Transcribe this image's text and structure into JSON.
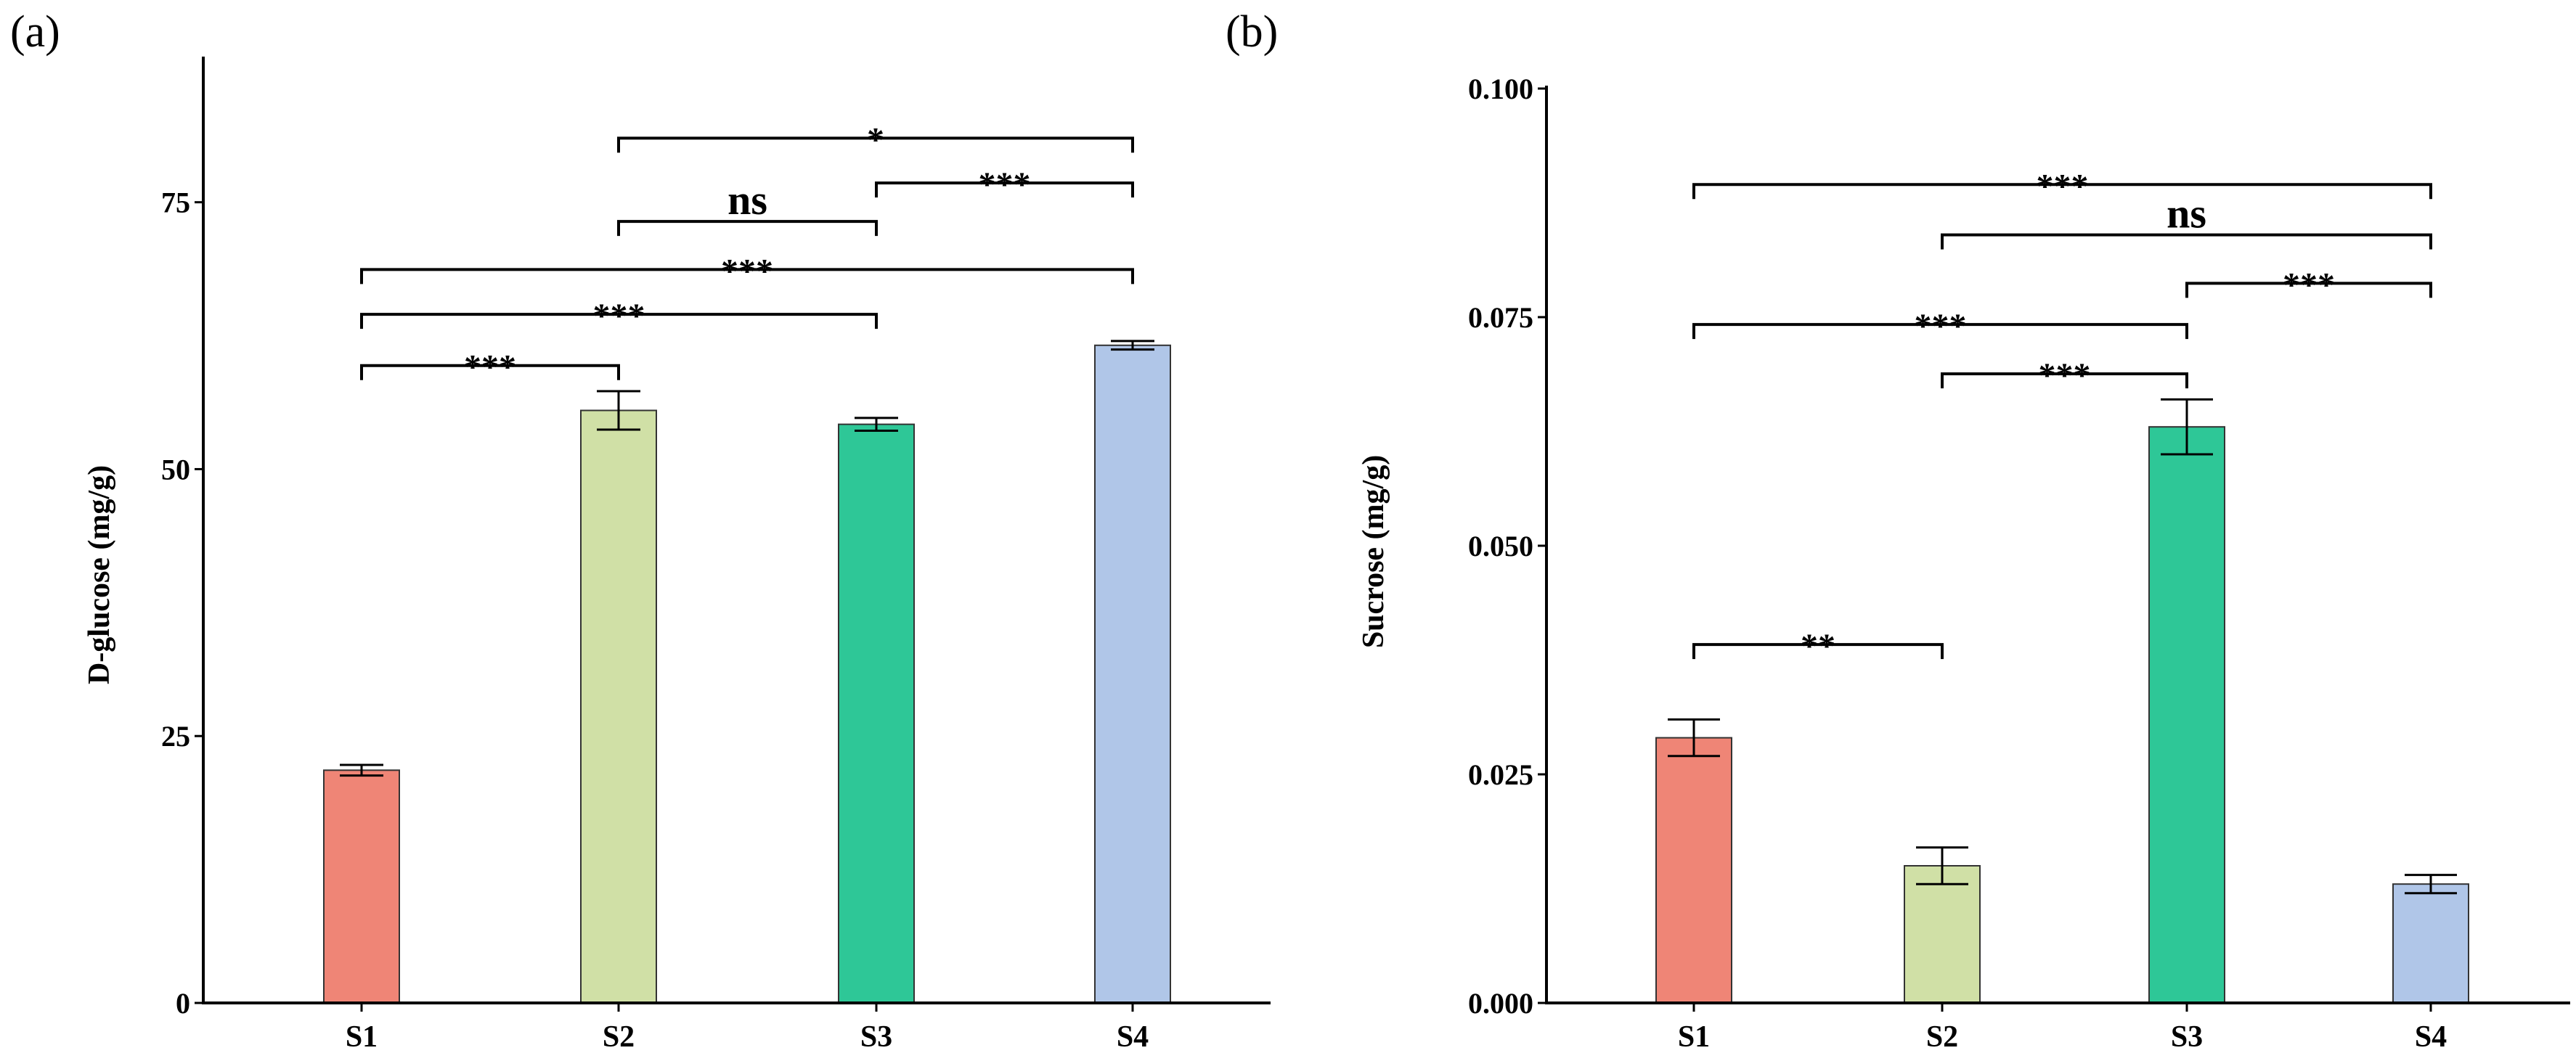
{
  "chart_data": [
    {
      "type": "bar",
      "panel_label": "(a)",
      "ylabel": "D-glucose (mg/g)",
      "categories": [
        "S1",
        "S2",
        "S3",
        "S4"
      ],
      "values": [
        21.8,
        55.5,
        54.2,
        61.6
      ],
      "errors": [
        0.5,
        1.8,
        0.6,
        0.4
      ],
      "colors": [
        "#ef8576",
        "#d0e0a6",
        "#2ec797",
        "#b0c6e8"
      ],
      "ylim": [
        0,
        90
      ],
      "yticks": [
        0,
        25,
        50,
        75
      ],
      "ytick_labels": [
        "0",
        "25",
        "50",
        "75"
      ],
      "significance": [
        {
          "from": "S1",
          "to": "S2",
          "label": "***",
          "y": 59.7
        },
        {
          "from": "S1",
          "to": "S3",
          "label": "***",
          "y": 64.5
        },
        {
          "from": "S1",
          "to": "S4",
          "label": "***",
          "y": 68.7
        },
        {
          "from": "S2",
          "to": "S3",
          "label": "ns",
          "y": 73.2
        },
        {
          "from": "S3",
          "to": "S4",
          "label": "***",
          "y": 76.8
        },
        {
          "from": "S2",
          "to": "S4",
          "label": "*",
          "y": 81.0
        }
      ]
    },
    {
      "type": "bar",
      "panel_label": "(b)",
      "ylabel": "Sucrose (mg/g)",
      "categories": [
        "S1",
        "S2",
        "S3",
        "S4"
      ],
      "values": [
        0.029,
        0.015,
        0.063,
        0.013
      ],
      "errors": [
        0.002,
        0.002,
        0.003,
        0.001
      ],
      "colors": [
        "#ef8576",
        "#d0e0a6",
        "#2ec797",
        "#b0c6e8"
      ],
      "ylim": [
        0,
        0.1
      ],
      "yticks": [
        0,
        0.025,
        0.05,
        0.075,
        0.1
      ],
      "ytick_labels": [
        "0.000",
        "0.025",
        "0.050",
        "0.075",
        "0.100"
      ],
      "significance": [
        {
          "from": "S1",
          "to": "S2",
          "label": "**",
          "y": 0.0392
        },
        {
          "from": "S2",
          "to": "S3",
          "label": "***",
          "y": 0.0688
        },
        {
          "from": "S1",
          "to": "S3",
          "label": "***",
          "y": 0.0742
        },
        {
          "from": "S3",
          "to": "S4",
          "label": "***",
          "y": 0.0787
        },
        {
          "from": "S2",
          "to": "S4",
          "label": "ns",
          "y": 0.084
        },
        {
          "from": "S1",
          "to": "S4",
          "label": "***",
          "y": 0.0895
        }
      ]
    }
  ]
}
